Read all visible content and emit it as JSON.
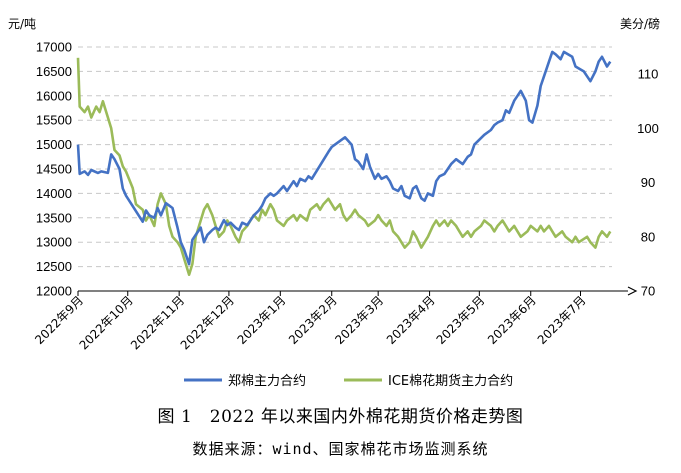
{
  "figure": {
    "caption": "图 1　2022 年以来国内外棉花期货价格走势图",
    "source": "数据来源：wind、国家棉花市场监测系统"
  },
  "chart_data": {
    "type": "line",
    "left_unit": "元/吨",
    "right_unit": "美分/磅",
    "left_ylim": [
      12000,
      17000
    ],
    "left_ticks": [
      12000,
      12500,
      13000,
      13500,
      14000,
      14500,
      15000,
      15500,
      16000,
      16500,
      17000
    ],
    "right_ylim": [
      70,
      115
    ],
    "right_ticks": [
      70,
      80,
      90,
      100,
      110
    ],
    "x_domain": [
      "2022-09-01",
      "2023-07-20"
    ],
    "x_ticks": [
      {
        "date": "2022-09-01",
        "label": "2022年9月"
      },
      {
        "date": "2022-10-01",
        "label": "2022年10月"
      },
      {
        "date": "2022-11-01",
        "label": "2022年11月"
      },
      {
        "date": "2022-12-01",
        "label": "2022年12月"
      },
      {
        "date": "2023-01-01",
        "label": "2023年1月"
      },
      {
        "date": "2023-02-01",
        "label": "2023年2月"
      },
      {
        "date": "2023-03-01",
        "label": "2023年3月"
      },
      {
        "date": "2023-04-01",
        "label": "2023年4月"
      },
      {
        "date": "2023-05-01",
        "label": "2023年5月"
      },
      {
        "date": "2023-06-01",
        "label": "2023年6月"
      },
      {
        "date": "2023-07-01",
        "label": "2023年7月"
      }
    ],
    "grid": "horizontal-dashed",
    "legend_position": "bottom",
    "series": [
      {
        "name": "郑棉主力合约",
        "axis": "left",
        "color": "#4472c4",
        "points": [
          [
            "2022-09-01",
            15000
          ],
          [
            "2022-09-02",
            14400
          ],
          [
            "2022-09-05",
            14450
          ],
          [
            "2022-09-07",
            14380
          ],
          [
            "2022-09-09",
            14480
          ],
          [
            "2022-09-13",
            14420
          ],
          [
            "2022-09-15",
            14450
          ],
          [
            "2022-09-19",
            14420
          ],
          [
            "2022-09-21",
            14800
          ],
          [
            "2022-09-23",
            14700
          ],
          [
            "2022-09-26",
            14500
          ],
          [
            "2022-09-28",
            14100
          ],
          [
            "2022-09-30",
            13950
          ],
          [
            "2022-10-10",
            13420
          ],
          [
            "2022-10-12",
            13650
          ],
          [
            "2022-10-14",
            13550
          ],
          [
            "2022-10-17",
            13500
          ],
          [
            "2022-10-19",
            13700
          ],
          [
            "2022-10-21",
            13550
          ],
          [
            "2022-10-24",
            13800
          ],
          [
            "2022-10-26",
            13750
          ],
          [
            "2022-10-28",
            13700
          ],
          [
            "2022-10-31",
            13300
          ],
          [
            "2022-11-02",
            13000
          ],
          [
            "2022-11-04",
            12850
          ],
          [
            "2022-11-07",
            12550
          ],
          [
            "2022-11-09",
            13050
          ],
          [
            "2022-11-11",
            13150
          ],
          [
            "2022-11-14",
            13300
          ],
          [
            "2022-11-16",
            13000
          ],
          [
            "2022-11-18",
            13150
          ],
          [
            "2022-11-21",
            13250
          ],
          [
            "2022-11-23",
            13300
          ],
          [
            "2022-11-25",
            13250
          ],
          [
            "2022-11-28",
            13450
          ],
          [
            "2022-11-30",
            13350
          ],
          [
            "2022-12-02",
            13400
          ],
          [
            "2022-12-05",
            13300
          ],
          [
            "2022-12-07",
            13250
          ],
          [
            "2022-12-09",
            13400
          ],
          [
            "2022-12-12",
            13350
          ],
          [
            "2022-12-14",
            13450
          ],
          [
            "2022-12-16",
            13550
          ],
          [
            "2022-12-19",
            13650
          ],
          [
            "2022-12-21",
            13750
          ],
          [
            "2022-12-23",
            13900
          ],
          [
            "2022-12-26",
            14000
          ],
          [
            "2022-12-28",
            13950
          ],
          [
            "2022-12-30",
            14000
          ],
          [
            "2023-01-03",
            14150
          ],
          [
            "2023-01-05",
            14050
          ],
          [
            "2023-01-09",
            14250
          ],
          [
            "2023-01-11",
            14150
          ],
          [
            "2023-01-13",
            14300
          ],
          [
            "2023-01-16",
            14250
          ],
          [
            "2023-01-18",
            14350
          ],
          [
            "2023-01-20",
            14300
          ],
          [
            "2023-01-30",
            14850
          ],
          [
            "2023-02-01",
            14950
          ],
          [
            "2023-02-03",
            15000
          ],
          [
            "2023-02-07",
            15100
          ],
          [
            "2023-02-09",
            15150
          ],
          [
            "2023-02-13",
            15000
          ],
          [
            "2023-02-15",
            14700
          ],
          [
            "2023-02-17",
            14650
          ],
          [
            "2023-02-20",
            14500
          ],
          [
            "2023-02-22",
            14800
          ],
          [
            "2023-02-24",
            14550
          ],
          [
            "2023-02-27",
            14300
          ],
          [
            "2023-03-01",
            14400
          ],
          [
            "2023-03-03",
            14300
          ],
          [
            "2023-03-06",
            14350
          ],
          [
            "2023-03-08",
            14250
          ],
          [
            "2023-03-10",
            14100
          ],
          [
            "2023-03-13",
            14050
          ],
          [
            "2023-03-15",
            14150
          ],
          [
            "2023-03-17",
            13950
          ],
          [
            "2023-03-20",
            13900
          ],
          [
            "2023-03-22",
            14100
          ],
          [
            "2023-03-24",
            14150
          ],
          [
            "2023-03-27",
            13900
          ],
          [
            "2023-03-29",
            13850
          ],
          [
            "2023-03-31",
            14000
          ],
          [
            "2023-04-03",
            13950
          ],
          [
            "2023-04-05",
            14250
          ],
          [
            "2023-04-07",
            14350
          ],
          [
            "2023-04-10",
            14400
          ],
          [
            "2023-04-12",
            14500
          ],
          [
            "2023-04-14",
            14600
          ],
          [
            "2023-04-17",
            14700
          ],
          [
            "2023-04-19",
            14650
          ],
          [
            "2023-04-21",
            14600
          ],
          [
            "2023-04-24",
            14750
          ],
          [
            "2023-04-26",
            14800
          ],
          [
            "2023-04-28",
            15000
          ],
          [
            "2023-05-04",
            15200
          ],
          [
            "2023-05-08",
            15300
          ],
          [
            "2023-05-10",
            15400
          ],
          [
            "2023-05-12",
            15450
          ],
          [
            "2023-05-15",
            15500
          ],
          [
            "2023-05-17",
            15700
          ],
          [
            "2023-05-19",
            15650
          ],
          [
            "2023-05-22",
            15900
          ],
          [
            "2023-05-24",
            16000
          ],
          [
            "2023-05-26",
            16100
          ],
          [
            "2023-05-29",
            15900
          ],
          [
            "2023-05-31",
            15500
          ],
          [
            "2023-06-02",
            15450
          ],
          [
            "2023-06-05",
            15800
          ],
          [
            "2023-06-07",
            16200
          ],
          [
            "2023-06-09",
            16400
          ],
          [
            "2023-06-12",
            16700
          ],
          [
            "2023-06-14",
            16900
          ],
          [
            "2023-06-16",
            16850
          ],
          [
            "2023-06-19",
            16750
          ],
          [
            "2023-06-21",
            16900
          ],
          [
            "2023-06-26",
            16800
          ],
          [
            "2023-06-28",
            16600
          ],
          [
            "2023-07-03",
            16500
          ],
          [
            "2023-07-05",
            16400
          ],
          [
            "2023-07-07",
            16300
          ],
          [
            "2023-07-10",
            16500
          ],
          [
            "2023-07-12",
            16700
          ],
          [
            "2023-07-14",
            16800
          ],
          [
            "2023-07-17",
            16600
          ],
          [
            "2023-07-19",
            16700
          ]
        ]
      },
      {
        "name": "ICE棉花期货主力合约",
        "axis": "right",
        "color": "#9bbb59",
        "points": [
          [
            "2022-09-01",
            113
          ],
          [
            "2022-09-02",
            104
          ],
          [
            "2022-09-05",
            103
          ],
          [
            "2022-09-07",
            104
          ],
          [
            "2022-09-09",
            102
          ],
          [
            "2022-09-12",
            104
          ],
          [
            "2022-09-14",
            103
          ],
          [
            "2022-09-16",
            105
          ],
          [
            "2022-09-19",
            102
          ],
          [
            "2022-09-21",
            100
          ],
          [
            "2022-09-23",
            96
          ],
          [
            "2022-09-26",
            95
          ],
          [
            "2022-09-28",
            93
          ],
          [
            "2022-09-30",
            92
          ],
          [
            "2022-10-04",
            89
          ],
          [
            "2022-10-06",
            86
          ],
          [
            "2022-10-10",
            85
          ],
          [
            "2022-10-12",
            83
          ],
          [
            "2022-10-14",
            84
          ],
          [
            "2022-10-17",
            82
          ],
          [
            "2022-10-19",
            86
          ],
          [
            "2022-10-21",
            88
          ],
          [
            "2022-10-24",
            86
          ],
          [
            "2022-10-26",
            82
          ],
          [
            "2022-10-28",
            80
          ],
          [
            "2022-10-31",
            79
          ],
          [
            "2022-11-02",
            78
          ],
          [
            "2022-11-04",
            76
          ],
          [
            "2022-11-07",
            73
          ],
          [
            "2022-11-09",
            75
          ],
          [
            "2022-11-11",
            80
          ],
          [
            "2022-11-14",
            83
          ],
          [
            "2022-11-16",
            85
          ],
          [
            "2022-11-18",
            86
          ],
          [
            "2022-11-21",
            84
          ],
          [
            "2022-11-23",
            82
          ],
          [
            "2022-11-25",
            80
          ],
          [
            "2022-11-28",
            81
          ],
          [
            "2022-11-30",
            83
          ],
          [
            "2022-12-02",
            82
          ],
          [
            "2022-12-05",
            80
          ],
          [
            "2022-12-07",
            79
          ],
          [
            "2022-12-09",
            81
          ],
          [
            "2022-12-12",
            82
          ],
          [
            "2022-12-14",
            83
          ],
          [
            "2022-12-16",
            84
          ],
          [
            "2022-12-19",
            83
          ],
          [
            "2022-12-21",
            85
          ],
          [
            "2022-12-23",
            84
          ],
          [
            "2022-12-26",
            86
          ],
          [
            "2022-12-28",
            85
          ],
          [
            "2022-12-30",
            83
          ],
          [
            "2023-01-03",
            82
          ],
          [
            "2023-01-05",
            83
          ],
          [
            "2023-01-09",
            84
          ],
          [
            "2023-01-11",
            83
          ],
          [
            "2023-01-13",
            84
          ],
          [
            "2023-01-17",
            83
          ],
          [
            "2023-01-19",
            85
          ],
          [
            "2023-01-23",
            86
          ],
          [
            "2023-01-25",
            85
          ],
          [
            "2023-01-27",
            86
          ],
          [
            "2023-01-30",
            87
          ],
          [
            "2023-02-01",
            86
          ],
          [
            "2023-02-03",
            85
          ],
          [
            "2023-02-06",
            86
          ],
          [
            "2023-02-08",
            84
          ],
          [
            "2023-02-10",
            83
          ],
          [
            "2023-02-13",
            84
          ],
          [
            "2023-02-15",
            85
          ],
          [
            "2023-02-17",
            84
          ],
          [
            "2023-02-21",
            83
          ],
          [
            "2023-02-23",
            82
          ],
          [
            "2023-02-27",
            83
          ],
          [
            "2023-03-01",
            84
          ],
          [
            "2023-03-03",
            83
          ],
          [
            "2023-03-06",
            82
          ],
          [
            "2023-03-08",
            83
          ],
          [
            "2023-03-10",
            81
          ],
          [
            "2023-03-13",
            80
          ],
          [
            "2023-03-15",
            79
          ],
          [
            "2023-03-17",
            78
          ],
          [
            "2023-03-20",
            79
          ],
          [
            "2023-03-22",
            81
          ],
          [
            "2023-03-24",
            80
          ],
          [
            "2023-03-27",
            78
          ],
          [
            "2023-03-29",
            79
          ],
          [
            "2023-03-31",
            80
          ],
          [
            "2023-04-03",
            82
          ],
          [
            "2023-04-05",
            83
          ],
          [
            "2023-04-07",
            82
          ],
          [
            "2023-04-10",
            83
          ],
          [
            "2023-04-12",
            82
          ],
          [
            "2023-04-14",
            83
          ],
          [
            "2023-04-17",
            82
          ],
          [
            "2023-04-19",
            81
          ],
          [
            "2023-04-21",
            80
          ],
          [
            "2023-04-24",
            81
          ],
          [
            "2023-04-26",
            80
          ],
          [
            "2023-04-28",
            81
          ],
          [
            "2023-05-02",
            82
          ],
          [
            "2023-05-04",
            83
          ],
          [
            "2023-05-08",
            82
          ],
          [
            "2023-05-10",
            81
          ],
          [
            "2023-05-12",
            82
          ],
          [
            "2023-05-15",
            83
          ],
          [
            "2023-05-17",
            82
          ],
          [
            "2023-05-19",
            81
          ],
          [
            "2023-05-22",
            82
          ],
          [
            "2023-05-24",
            81
          ],
          [
            "2023-05-26",
            80
          ],
          [
            "2023-05-30",
            81
          ],
          [
            "2023-06-01",
            82
          ],
          [
            "2023-06-05",
            81
          ],
          [
            "2023-06-07",
            82
          ],
          [
            "2023-06-09",
            81
          ],
          [
            "2023-06-12",
            82
          ],
          [
            "2023-06-14",
            81
          ],
          [
            "2023-06-16",
            80
          ],
          [
            "2023-06-20",
            81
          ],
          [
            "2023-06-22",
            80
          ],
          [
            "2023-06-26",
            79
          ],
          [
            "2023-06-28",
            80
          ],
          [
            "2023-06-30",
            79
          ],
          [
            "2023-07-05",
            80
          ],
          [
            "2023-07-07",
            79
          ],
          [
            "2023-07-10",
            78
          ],
          [
            "2023-07-12",
            80
          ],
          [
            "2023-07-14",
            81
          ],
          [
            "2023-07-17",
            80
          ],
          [
            "2023-07-19",
            81
          ]
        ]
      }
    ]
  }
}
